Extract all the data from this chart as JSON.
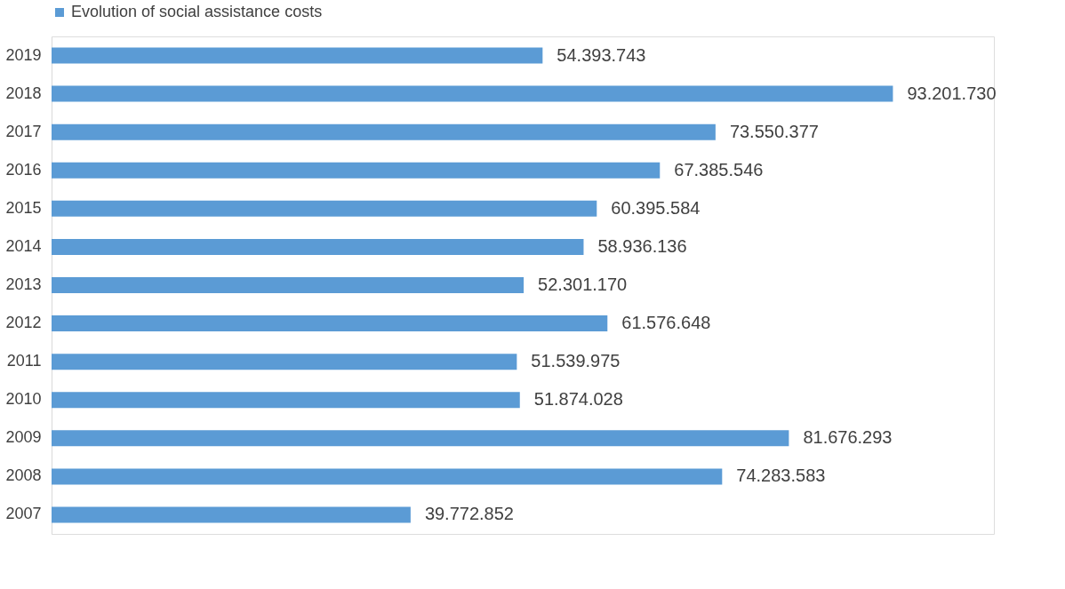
{
  "chart_data": {
    "type": "bar",
    "orientation": "horizontal",
    "categories": [
      "2019",
      "2018",
      "2017",
      "2016",
      "2015",
      "2014",
      "2013",
      "2012",
      "2011",
      "2010",
      "2009",
      "2008",
      "2007"
    ],
    "series": [
      {
        "name": "Evolution of social assistance costs",
        "color": "#5b9bd5",
        "values": [
          54393743,
          93201730,
          73550377,
          67385546,
          60395584,
          58936136,
          52301170,
          61576648,
          51539975,
          51874028,
          81676293,
          74283583,
          39772852
        ],
        "value_labels": [
          "54.393.743",
          "93.201.730",
          "73.550.377",
          "67.385.546",
          "60.395.584",
          "58.936.136",
          "52.301.170",
          "61.576.648",
          "51.539.975",
          "51.874.028",
          "81.676.293",
          "74.283.583",
          "39.772.852"
        ]
      }
    ],
    "legend": "top",
    "tick_labels": "y"
  }
}
